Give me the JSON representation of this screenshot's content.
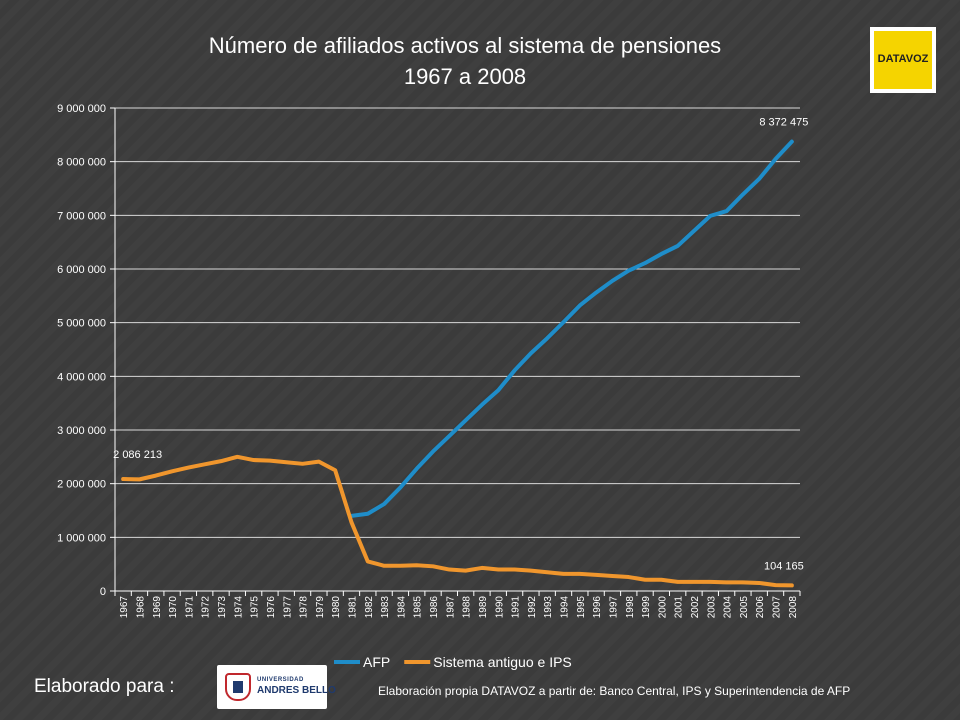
{
  "colors": {
    "background": "#3b3b3b",
    "afp": "#1f8dc9",
    "sistema": "#f0962d",
    "axis": "#ffffff",
    "gridline": "#d9d9d9"
  },
  "logo": {
    "brand_text": "DATAVOZ"
  },
  "footer": {
    "elaborado_label": "Elaborado para :",
    "university_small": "UNIVERSIDAD",
    "university_big": "ANDRES BELLO",
    "source": "Elaboración propia DATAVOZ a partir de: Banco Central, IPS y Superintendencia de AFP"
  },
  "chart_data": {
    "type": "line",
    "title": "Número de afiliados activos al sistema de pensiones",
    "subtitle": "1967 a 2008",
    "xlabel": "",
    "ylabel": "",
    "ylim": [
      0,
      9000000
    ],
    "yticks": [
      0,
      1000000,
      2000000,
      3000000,
      4000000,
      5000000,
      6000000,
      7000000,
      8000000,
      9000000
    ],
    "ytick_labels": [
      "0",
      "1 000 000",
      "2 000 000",
      "3 000 000",
      "4 000 000",
      "5 000 000",
      "6 000 000",
      "7 000 000",
      "8 000 000",
      "9 000 000"
    ],
    "grid": true,
    "legend_position": "bottom",
    "categories": [
      "1967",
      "1968",
      "1969",
      "1970",
      "1971",
      "1972",
      "1973",
      "1974",
      "1975",
      "1976",
      "1977",
      "1978",
      "1979",
      "1980",
      "1981",
      "1982",
      "1983",
      "1984",
      "1985",
      "1986",
      "1987",
      "1988",
      "1989",
      "1990",
      "1991",
      "1992",
      "1993",
      "1994",
      "1995",
      "1996",
      "1997",
      "1998",
      "1999",
      "2000",
      "2001",
      "2002",
      "2003",
      "2004",
      "2005",
      "2006",
      "2007",
      "2008"
    ],
    "series": [
      {
        "name": "AFP",
        "color": "#1f8dc9",
        "values": [
          null,
          null,
          null,
          null,
          null,
          null,
          null,
          null,
          null,
          null,
          null,
          null,
          null,
          null,
          1400000,
          1440000,
          1620000,
          1930000,
          2280000,
          2600000,
          2890000,
          3180000,
          3470000,
          3740000,
          4110000,
          4430000,
          4710000,
          5010000,
          5320000,
          5560000,
          5780000,
          5970000,
          6110000,
          6280000,
          6430000,
          6710000,
          6990000,
          7080000,
          7390000,
          7680000,
          8050000,
          8372475
        ]
      },
      {
        "name": "Sistema antiguo e IPS",
        "color": "#f0962d",
        "values": [
          2086213,
          2080000,
          2150000,
          2230000,
          2300000,
          2360000,
          2420000,
          2500000,
          2440000,
          2430000,
          2400000,
          2370000,
          2410000,
          2250000,
          1280000,
          550000,
          470000,
          470000,
          480000,
          460000,
          400000,
          380000,
          430000,
          400000,
          400000,
          380000,
          350000,
          320000,
          320000,
          300000,
          280000,
          260000,
          210000,
          210000,
          170000,
          170000,
          170000,
          160000,
          160000,
          150000,
          110000,
          104165
        ]
      }
    ],
    "data_labels": [
      {
        "text": "2 086 213",
        "series": "Sistema antiguo e IPS",
        "category": "1967"
      },
      {
        "text": "8 372 475",
        "series": "AFP",
        "category": "2008"
      },
      {
        "text": "104 165",
        "series": "Sistema antiguo e IPS",
        "category": "2008"
      }
    ]
  }
}
